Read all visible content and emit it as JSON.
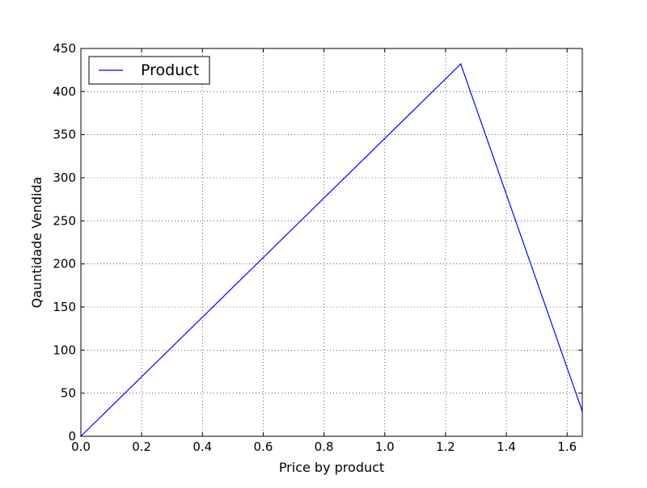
{
  "chart_data": {
    "type": "line",
    "xlabel": "Price by product",
    "ylabel": "Qauntidade Vendida",
    "xlim": [
      0.0,
      1.65
    ],
    "ylim": [
      0,
      450
    ],
    "x_ticks": [
      "0.0",
      "0.2",
      "0.4",
      "0.6",
      "0.8",
      "1.0",
      "1.2",
      "1.4",
      "1.6"
    ],
    "y_ticks": [
      "0",
      "50",
      "100",
      "150",
      "200",
      "250",
      "300",
      "350",
      "400",
      "450"
    ],
    "grid": true,
    "legend_position": "top-left",
    "series": [
      {
        "name": "Product",
        "color": "#0000ff",
        "x": [
          0.0,
          1.25,
          1.65
        ],
        "y": [
          0,
          432,
          29
        ]
      }
    ]
  }
}
